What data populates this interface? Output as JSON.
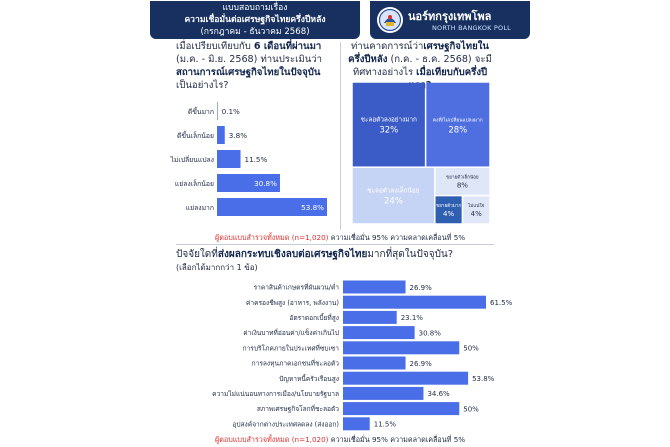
{
  "header": {
    "line1": "แบบสอบถามเรื่อง",
    "line2": "ความเชื่อมั่นต่อเศรษฐกิจไทยครึ่งปีหลัง",
    "line3": "(กรกฎาคม - ธันวาคม 2568)"
  },
  "brand": {
    "name_th": "นอร์ทกรุงเทพโพล",
    "name_en": "NORTH BANGKOK POLL"
  },
  "q1": {
    "pre": "เมื่อเปรียบเทียบกับ ",
    "bold1": "6 เดือนที่ผ่านมา",
    "mid": " (ม.ค. - มิ.ย. 2568) ท่านประเมินว่า ",
    "bold2": "สถานการณ์เศรษฐกิจไทยในปัจจุบัน",
    "post": " เป็นอย่างไร?"
  },
  "q2": {
    "pre": "ท่านคาดการณ์ว่า",
    "bold1": "เศรษฐกิจไทยในครึ่งปีหลัง",
    "mid": " (ก.ค. - ธ.ค. 2568) จะมีทิศทางอย่างไร ",
    "bold2": "เมื่อเทียบกับครึ่งปีแรก?"
  },
  "q3": {
    "pre": "ปัจจัยใดที่",
    "bold": "ส่งผลกระทบเชิงลบต่อเศรษฐกิจไทย",
    "post": "มากที่สุดในปัจจุบัน?",
    "sub": "(เลือกได้มากกว่า 1 ข้อ)"
  },
  "note1": {
    "red": "ผู้ตอบแบบสำรวจทั้งหมด (n=1,020)",
    "rest": " ความเชื่อมั่น 95% ความคลาดเคลื่อนที่ 5%"
  },
  "note2": {
    "red": "ผู้ตอบแบบสำรวจทั้งหมด (n=1,020)",
    "rest": " ความเชื่อมั่น 95% ความคลาดเคลื่อนที่ 5%"
  },
  "colors": {
    "navy": "#17305f",
    "bar": "#4a6ee8",
    "tm1": "#3b5cc6",
    "tm2": "#4f6fe0",
    "tm3": "#c5d3f5",
    "tm4": "#dfe6f8",
    "tm5": "#2f5fb0"
  },
  "chart_data": [
    {
      "type": "bar",
      "orientation": "horizontal",
      "categories": [
        "ดีขึ้นมาก",
        "ดีขึ้นเล็กน้อย",
        "ไม่เปลี่ยนแปลง",
        "แย่ลงเล็กน้อย",
        "แย่ลงมาก"
      ],
      "values": [
        0.1,
        3.8,
        11.5,
        30.8,
        53.8
      ],
      "labels": [
        "0.1%",
        "3.8%",
        "11.5%",
        "30.8%",
        "53.8%"
      ],
      "xlim": [
        0,
        53.8
      ]
    },
    {
      "type": "treemap",
      "categories": [
        "ชะลอตัวลงอย่างมาก",
        "คงที่/ไม่เปลี่ยนแปลง",
        "ชะลอตัวลงเล็กน้อย",
        "ขยายตัวเล็กน้อย",
        "ขยายตัวมาก",
        "ไม่แน่ใจ"
      ],
      "labels": [
        "ชะลอตัวลงอย่างมาก",
        "คงที่/ไม่เปลี่ยนแปลงมาก",
        "ชะลอตัวลงเล็กน้อย",
        "ขยายตัวเล็กน้อย",
        "ขยายตัวมาก",
        "ไม่แน่ใจ"
      ],
      "values": [
        32,
        28,
        24,
        8,
        4,
        4
      ],
      "value_labels": [
        "32%",
        "28%",
        "24%",
        "8%",
        "4%",
        "4%"
      ]
    },
    {
      "type": "bar",
      "orientation": "horizontal",
      "categories": [
        "ราคาสินค้าเกษตรที่ผันผวน/ต่ำ",
        "ค่าครองชีพสูง (อาหาร, พลังงาน)",
        "อัตราดอกเบี้ยที่สูง",
        "ค่าเงินบาทที่อ่อนค่า/แข็งค่าเกินไป",
        "การบริโภคภายในประเทศที่ซบเซา",
        "การลงทุนภาคเอกชนที่ชะลอตัว",
        "ปัญหาหนี้ครัวเรือนสูง",
        "ความไม่แน่นอนทางการเมือง/นโยบายรัฐบาล",
        "สภาพเศรษฐกิจโลกที่ชะลอตัว",
        "อุปสงค์จากต่างประเทศลดลง (ส่งออก)"
      ],
      "values": [
        26.9,
        61.5,
        23.1,
        30.8,
        50,
        26.9,
        53.8,
        34.6,
        50,
        11.5
      ],
      "labels": [
        "26.9%",
        "61.5%",
        "23.1%",
        "30.8%",
        "50%",
        "26.9%",
        "53.8%",
        "34.6%",
        "50%",
        "11.5%"
      ],
      "xlim": [
        0,
        61.5
      ]
    }
  ]
}
